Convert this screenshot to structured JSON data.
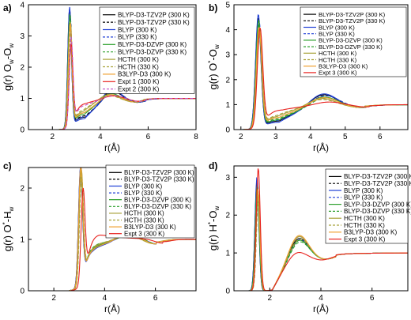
{
  "colors": {
    "BLYP-D3-TZV2P": "#000000",
    "BLYP": "#1f3fd6",
    "BLYP-D3-DZVP": "#2ea02e",
    "HCTH": "#a8a23a",
    "B3LYP-D3": "#f0a030",
    "Expt": "#e8221e",
    "Expt2": "#c050c8"
  },
  "chart_data": [
    {
      "type": "line",
      "panel_label": "a)",
      "xlabel": "r(Å)",
      "ylabel_parts": [
        "g(r) O",
        "w",
        "-O",
        "w"
      ],
      "xlim": [
        1,
        8
      ],
      "ylim": [
        0,
        4
      ],
      "xticks": [
        2,
        4,
        6,
        8
      ],
      "yticks": [
        0,
        1,
        2,
        3,
        4
      ],
      "legend_position": "top-right",
      "series": [
        {
          "name": "BLYP-D3-TZV2P (300 K)",
          "color": "#000000",
          "dash": "solid",
          "peak_x": 2.72,
          "peak_y": 3.8,
          "shift": -0.02,
          "trough_x": 3.4,
          "trough_y": 0.4,
          "second_x": 4.45,
          "second_y": 1.42
        },
        {
          "name": "BLYP-D3-TZV2P (330 K)",
          "color": "#000000",
          "dash": "dashed",
          "peak_x": 2.74,
          "peak_y": 3.6,
          "shift": 0.0,
          "trough_x": 3.4,
          "trough_y": 0.45,
          "second_x": 4.5,
          "second_y": 1.38
        },
        {
          "name": "BLYP (300 K)",
          "color": "#1f3fd6",
          "dash": "solid",
          "peak_x": 2.72,
          "peak_y": 3.85,
          "shift": -0.01,
          "trough_x": 3.35,
          "trough_y": 0.35,
          "second_x": 4.45,
          "second_y": 1.48
        },
        {
          "name": "BLYP (330 K)",
          "color": "#1f3fd6",
          "dash": "dashed",
          "peak_x": 2.74,
          "peak_y": 3.55,
          "shift": 0.01,
          "trough_x": 3.4,
          "trough_y": 0.42,
          "second_x": 4.5,
          "second_y": 1.38
        },
        {
          "name": "BLYP-D3-DZVP (300 K)",
          "color": "#2ea02e",
          "dash": "solid",
          "peak_x": 2.73,
          "peak_y": 3.6,
          "shift": 0.0,
          "trough_x": 3.35,
          "trough_y": 0.5,
          "second_x": 4.4,
          "second_y": 1.3
        },
        {
          "name": "BLYP-D3-DZVP (330 K)",
          "color": "#2ea02e",
          "dash": "dashed",
          "peak_x": 2.74,
          "peak_y": 3.4,
          "shift": 0.01,
          "trough_x": 3.35,
          "trough_y": 0.55,
          "second_x": 4.4,
          "second_y": 1.25
        },
        {
          "name": "HCTH (300 K)",
          "color": "#a8a23a",
          "dash": "solid",
          "peak_x": 2.75,
          "peak_y": 3.3,
          "shift": 0.02,
          "trough_x": 3.3,
          "trough_y": 0.6,
          "second_x": 4.3,
          "second_y": 1.25
        },
        {
          "name": "HCTH (330 K)",
          "color": "#a8a23a",
          "dash": "dashed",
          "peak_x": 2.76,
          "peak_y": 3.1,
          "shift": 0.03,
          "trough_x": 3.3,
          "trough_y": 0.65,
          "second_x": 4.3,
          "second_y": 1.2
        },
        {
          "name": "B3LYP-D3 (300 K)",
          "color": "#f0a030",
          "dash": "solid",
          "peak_x": 2.74,
          "peak_y": 3.3,
          "shift": 0.0,
          "trough_x": 3.35,
          "trough_y": 0.55,
          "second_x": 4.4,
          "second_y": 1.25
        },
        {
          "name": "Expt 1 (300 K)",
          "color": "#e8221e",
          "dash": "solid",
          "peak_x": 2.78,
          "peak_y": 2.57,
          "shift": 0.05,
          "trough_x": 3.4,
          "trough_y": 0.85,
          "second_x": 4.5,
          "second_y": 1.12
        },
        {
          "name": "Expt 2 (300 K)",
          "color": "#c050c8",
          "dash": "dashed",
          "peak_x": 2.78,
          "peak_y": 2.8,
          "shift": 0.05,
          "trough_x": 3.4,
          "trough_y": 0.8,
          "second_x": 4.5,
          "second_y": 1.15
        }
      ]
    },
    {
      "type": "line",
      "panel_label": "b)",
      "xlabel": "r(Å)",
      "ylabel_parts": [
        "g(r) O",
        "*",
        "-O",
        "w"
      ],
      "xlim": [
        1.8,
        6.8
      ],
      "ylim": [
        0,
        5
      ],
      "xticks": [
        2,
        3,
        4,
        5,
        6
      ],
      "yticks": [
        0,
        1,
        2,
        3,
        4,
        5
      ],
      "legend_position": "top-right",
      "series": [
        {
          "name": "BLYP-D3-TZV2P (300 K)",
          "color": "#000000",
          "dash": "solid",
          "peak_x": 2.5,
          "peak_y": 4.4,
          "shift": -0.02,
          "trough_x": 3.1,
          "trough_y": 0.35,
          "second_x": 4.35,
          "second_y": 1.55
        },
        {
          "name": "BLYP-D3-TZV2P (330 K)",
          "color": "#000000",
          "dash": "dashed",
          "peak_x": 2.52,
          "peak_y": 4.2,
          "shift": 0.0,
          "trough_x": 3.1,
          "trough_y": 0.4,
          "second_x": 4.4,
          "second_y": 1.5
        },
        {
          "name": "BLYP (300 K)",
          "color": "#1f3fd6",
          "dash": "solid",
          "peak_x": 2.5,
          "peak_y": 4.55,
          "shift": -0.01,
          "trough_x": 3.1,
          "trough_y": 0.3,
          "second_x": 4.35,
          "second_y": 1.6
        },
        {
          "name": "BLYP (330 K)",
          "color": "#1f3fd6",
          "dash": "dashed",
          "peak_x": 2.52,
          "peak_y": 4.3,
          "shift": 0.01,
          "trough_x": 3.1,
          "trough_y": 0.38,
          "second_x": 4.4,
          "second_y": 1.5
        },
        {
          "name": "BLYP-D3-DZVP (300 K)",
          "color": "#2ea02e",
          "dash": "solid",
          "peak_x": 2.51,
          "peak_y": 4.3,
          "shift": 0.0,
          "trough_x": 3.1,
          "trough_y": 0.4,
          "second_x": 4.35,
          "second_y": 1.45
        },
        {
          "name": "BLYP-D3-DZVP (330 K)",
          "color": "#2ea02e",
          "dash": "dashed",
          "peak_x": 2.52,
          "peak_y": 4.1,
          "shift": 0.01,
          "trough_x": 3.1,
          "trough_y": 0.45,
          "second_x": 4.4,
          "second_y": 1.4
        },
        {
          "name": "HCTH (300 K)",
          "color": "#a8a23a",
          "dash": "solid",
          "peak_x": 2.53,
          "peak_y": 3.9,
          "shift": 0.02,
          "trough_x": 3.05,
          "trough_y": 0.55,
          "second_x": 4.3,
          "second_y": 1.35
        },
        {
          "name": "HCTH (330 K)",
          "color": "#a8a23a",
          "dash": "dashed",
          "peak_x": 2.54,
          "peak_y": 3.7,
          "shift": 0.03,
          "trough_x": 3.05,
          "trough_y": 0.6,
          "second_x": 4.3,
          "second_y": 1.3
        },
        {
          "name": "B3LYP-D3 (300 K)",
          "color": "#f0a030",
          "dash": "solid",
          "peak_x": 2.52,
          "peak_y": 4.0,
          "shift": 0.0,
          "trough_x": 3.1,
          "trough_y": 0.5,
          "second_x": 4.35,
          "second_y": 1.4
        },
        {
          "name": "Expt 3 (300 K)",
          "color": "#e8221e",
          "dash": "solid",
          "peak_x": 2.55,
          "peak_y": 3.9,
          "shift": 0.05,
          "trough_x": 3.2,
          "trough_y": 0.8,
          "second_x": 4.5,
          "second_y": 1.15
        }
      ]
    },
    {
      "type": "line",
      "panel_label": "c)",
      "xlabel": "r(Å)",
      "ylabel_parts": [
        "g(r) O",
        "*",
        "-H",
        "w"
      ],
      "xlim": [
        1.0,
        7.6
      ],
      "ylim": [
        0,
        2.4
      ],
      "xticks": [
        2,
        4,
        6
      ],
      "yticks": [
        0,
        1,
        2
      ],
      "legend_position": "top-right",
      "series": [
        {
          "name": "BLYP-D3-TZV2P (300 K)",
          "color": "#000000",
          "dash": "solid",
          "peak_x": 3.05,
          "peak_y": 2.2,
          "shift": -0.02,
          "trough_x": 3.55,
          "trough_y": 0.85,
          "second_x": 4.9,
          "second_y": 1.15
        },
        {
          "name": "BLYP-D3-TZV2P (330 K)",
          "color": "#000000",
          "dash": "dashed",
          "peak_x": 3.07,
          "peak_y": 2.1,
          "shift": 0.0,
          "trough_x": 3.55,
          "trough_y": 0.88,
          "second_x": 4.95,
          "second_y": 1.12
        },
        {
          "name": "BLYP (300 K)",
          "color": "#1f3fd6",
          "dash": "solid",
          "peak_x": 3.05,
          "peak_y": 2.25,
          "shift": -0.01,
          "trough_x": 3.55,
          "trough_y": 0.82,
          "second_x": 4.9,
          "second_y": 1.16
        },
        {
          "name": "BLYP (330 K)",
          "color": "#1f3fd6",
          "dash": "dashed",
          "peak_x": 3.07,
          "peak_y": 2.12,
          "shift": 0.01,
          "trough_x": 3.55,
          "trough_y": 0.86,
          "second_x": 4.95,
          "second_y": 1.13
        },
        {
          "name": "BLYP-D3-DZVP (300 K)",
          "color": "#2ea02e",
          "dash": "solid",
          "peak_x": 3.06,
          "peak_y": 2.15,
          "shift": 0.0,
          "trough_x": 3.55,
          "trough_y": 0.86,
          "second_x": 4.9,
          "second_y": 1.14
        },
        {
          "name": "BLYP-D3-DZVP (330 K)",
          "color": "#2ea02e",
          "dash": "dashed",
          "peak_x": 3.07,
          "peak_y": 2.05,
          "shift": 0.01,
          "trough_x": 3.55,
          "trough_y": 0.9,
          "second_x": 4.95,
          "second_y": 1.11
        },
        {
          "name": "HCTH (300 K)",
          "color": "#a8a23a",
          "dash": "solid",
          "peak_x": 3.08,
          "peak_y": 2.18,
          "shift": 0.02,
          "trough_x": 3.55,
          "trough_y": 0.88,
          "second_x": 4.85,
          "second_y": 1.12
        },
        {
          "name": "HCTH (330 K)",
          "color": "#a8a23a",
          "dash": "dashed",
          "peak_x": 3.09,
          "peak_y": 2.08,
          "shift": 0.03,
          "trough_x": 3.55,
          "trough_y": 0.9,
          "second_x": 4.85,
          "second_y": 1.1
        },
        {
          "name": "B3LYP-D3 (300 K)",
          "color": "#f0a030",
          "dash": "solid",
          "peak_x": 3.06,
          "peak_y": 2.28,
          "shift": 0.0,
          "trough_x": 3.55,
          "trough_y": 0.84,
          "second_x": 4.9,
          "second_y": 1.15
        },
        {
          "name": "Expt 3 (300 K)",
          "color": "#e8221e",
          "dash": "solid",
          "peak_x": 3.15,
          "peak_y": 1.75,
          "shift": 0.05,
          "trough_x": 3.8,
          "trough_y": 1.1,
          "second_x": 5.2,
          "second_y": 1.0
        }
      ]
    },
    {
      "type": "line",
      "panel_label": "d)",
      "xlabel": "r(Å)",
      "ylabel_parts": [
        "g(r) H",
        "*",
        "-O",
        "w"
      ],
      "xlim": [
        0.6,
        7.4
      ],
      "ylim": [
        0,
        3.3
      ],
      "xticks": [
        2,
        4,
        6
      ],
      "yticks": [
        0,
        1,
        2,
        3
      ],
      "legend_position": "top-right",
      "series": [
        {
          "name": "BLYP-D3-TZV2P (300 K)",
          "color": "#000000",
          "dash": "solid",
          "peak_x": 1.5,
          "peak_y": 2.9,
          "shift": -0.02,
          "trough_x": 2.1,
          "trough_y": 0.0,
          "second_x": 3.1,
          "second_y": 1.7
        },
        {
          "name": "BLYP-D3-TZV2P (330 K)",
          "color": "#000000",
          "dash": "dashed",
          "peak_x": 1.52,
          "peak_y": 2.75,
          "shift": 0.0,
          "trough_x": 2.1,
          "trough_y": 0.0,
          "second_x": 3.12,
          "second_y": 1.65
        },
        {
          "name": "BLYP (300 K)",
          "color": "#1f3fd6",
          "dash": "solid",
          "peak_x": 1.5,
          "peak_y": 3.0,
          "shift": -0.01,
          "trough_x": 2.1,
          "trough_y": 0.0,
          "second_x": 3.1,
          "second_y": 1.75
        },
        {
          "name": "BLYP (330 K)",
          "color": "#1f3fd6",
          "dash": "dashed",
          "peak_x": 1.52,
          "peak_y": 2.8,
          "shift": 0.01,
          "trough_x": 2.1,
          "trough_y": 0.0,
          "second_x": 3.12,
          "second_y": 1.66
        },
        {
          "name": "BLYP-D3-DZVP (300 K)",
          "color": "#2ea02e",
          "dash": "solid",
          "peak_x": 1.51,
          "peak_y": 2.8,
          "shift": 0.0,
          "trough_x": 2.1,
          "trough_y": 0.0,
          "second_x": 3.1,
          "second_y": 1.65
        },
        {
          "name": "BLYP-D3-DZVP (330 K)",
          "color": "#2ea02e",
          "dash": "dashed",
          "peak_x": 1.52,
          "peak_y": 2.65,
          "shift": 0.01,
          "trough_x": 2.1,
          "trough_y": 0.0,
          "second_x": 3.12,
          "second_y": 1.6
        },
        {
          "name": "HCTH (300 K)",
          "color": "#a8a23a",
          "dash": "solid",
          "peak_x": 1.55,
          "peak_y": 2.6,
          "shift": 0.02,
          "trough_x": 2.1,
          "trough_y": 0.0,
          "second_x": 3.1,
          "second_y": 1.75
        },
        {
          "name": "HCTH (330 K)",
          "color": "#a8a23a",
          "dash": "dashed",
          "peak_x": 1.56,
          "peak_y": 2.5,
          "shift": 0.03,
          "trough_x": 2.1,
          "trough_y": 0.0,
          "second_x": 3.12,
          "second_y": 1.68
        },
        {
          "name": "B3LYP-D3 (300 K)",
          "color": "#f0a030",
          "dash": "solid",
          "peak_x": 1.53,
          "peak_y": 2.7,
          "shift": 0.0,
          "trough_x": 2.1,
          "trough_y": 0.0,
          "second_x": 3.1,
          "second_y": 1.78
        },
        {
          "name": "Expt 3 (300 K)",
          "color": "#e8221e",
          "dash": "solid",
          "peak_x": 1.55,
          "peak_y": 3.25,
          "shift": 0.05,
          "trough_x": 2.1,
          "trough_y": 0.0,
          "second_x": 3.0,
          "second_y": 1.35
        }
      ]
    }
  ]
}
